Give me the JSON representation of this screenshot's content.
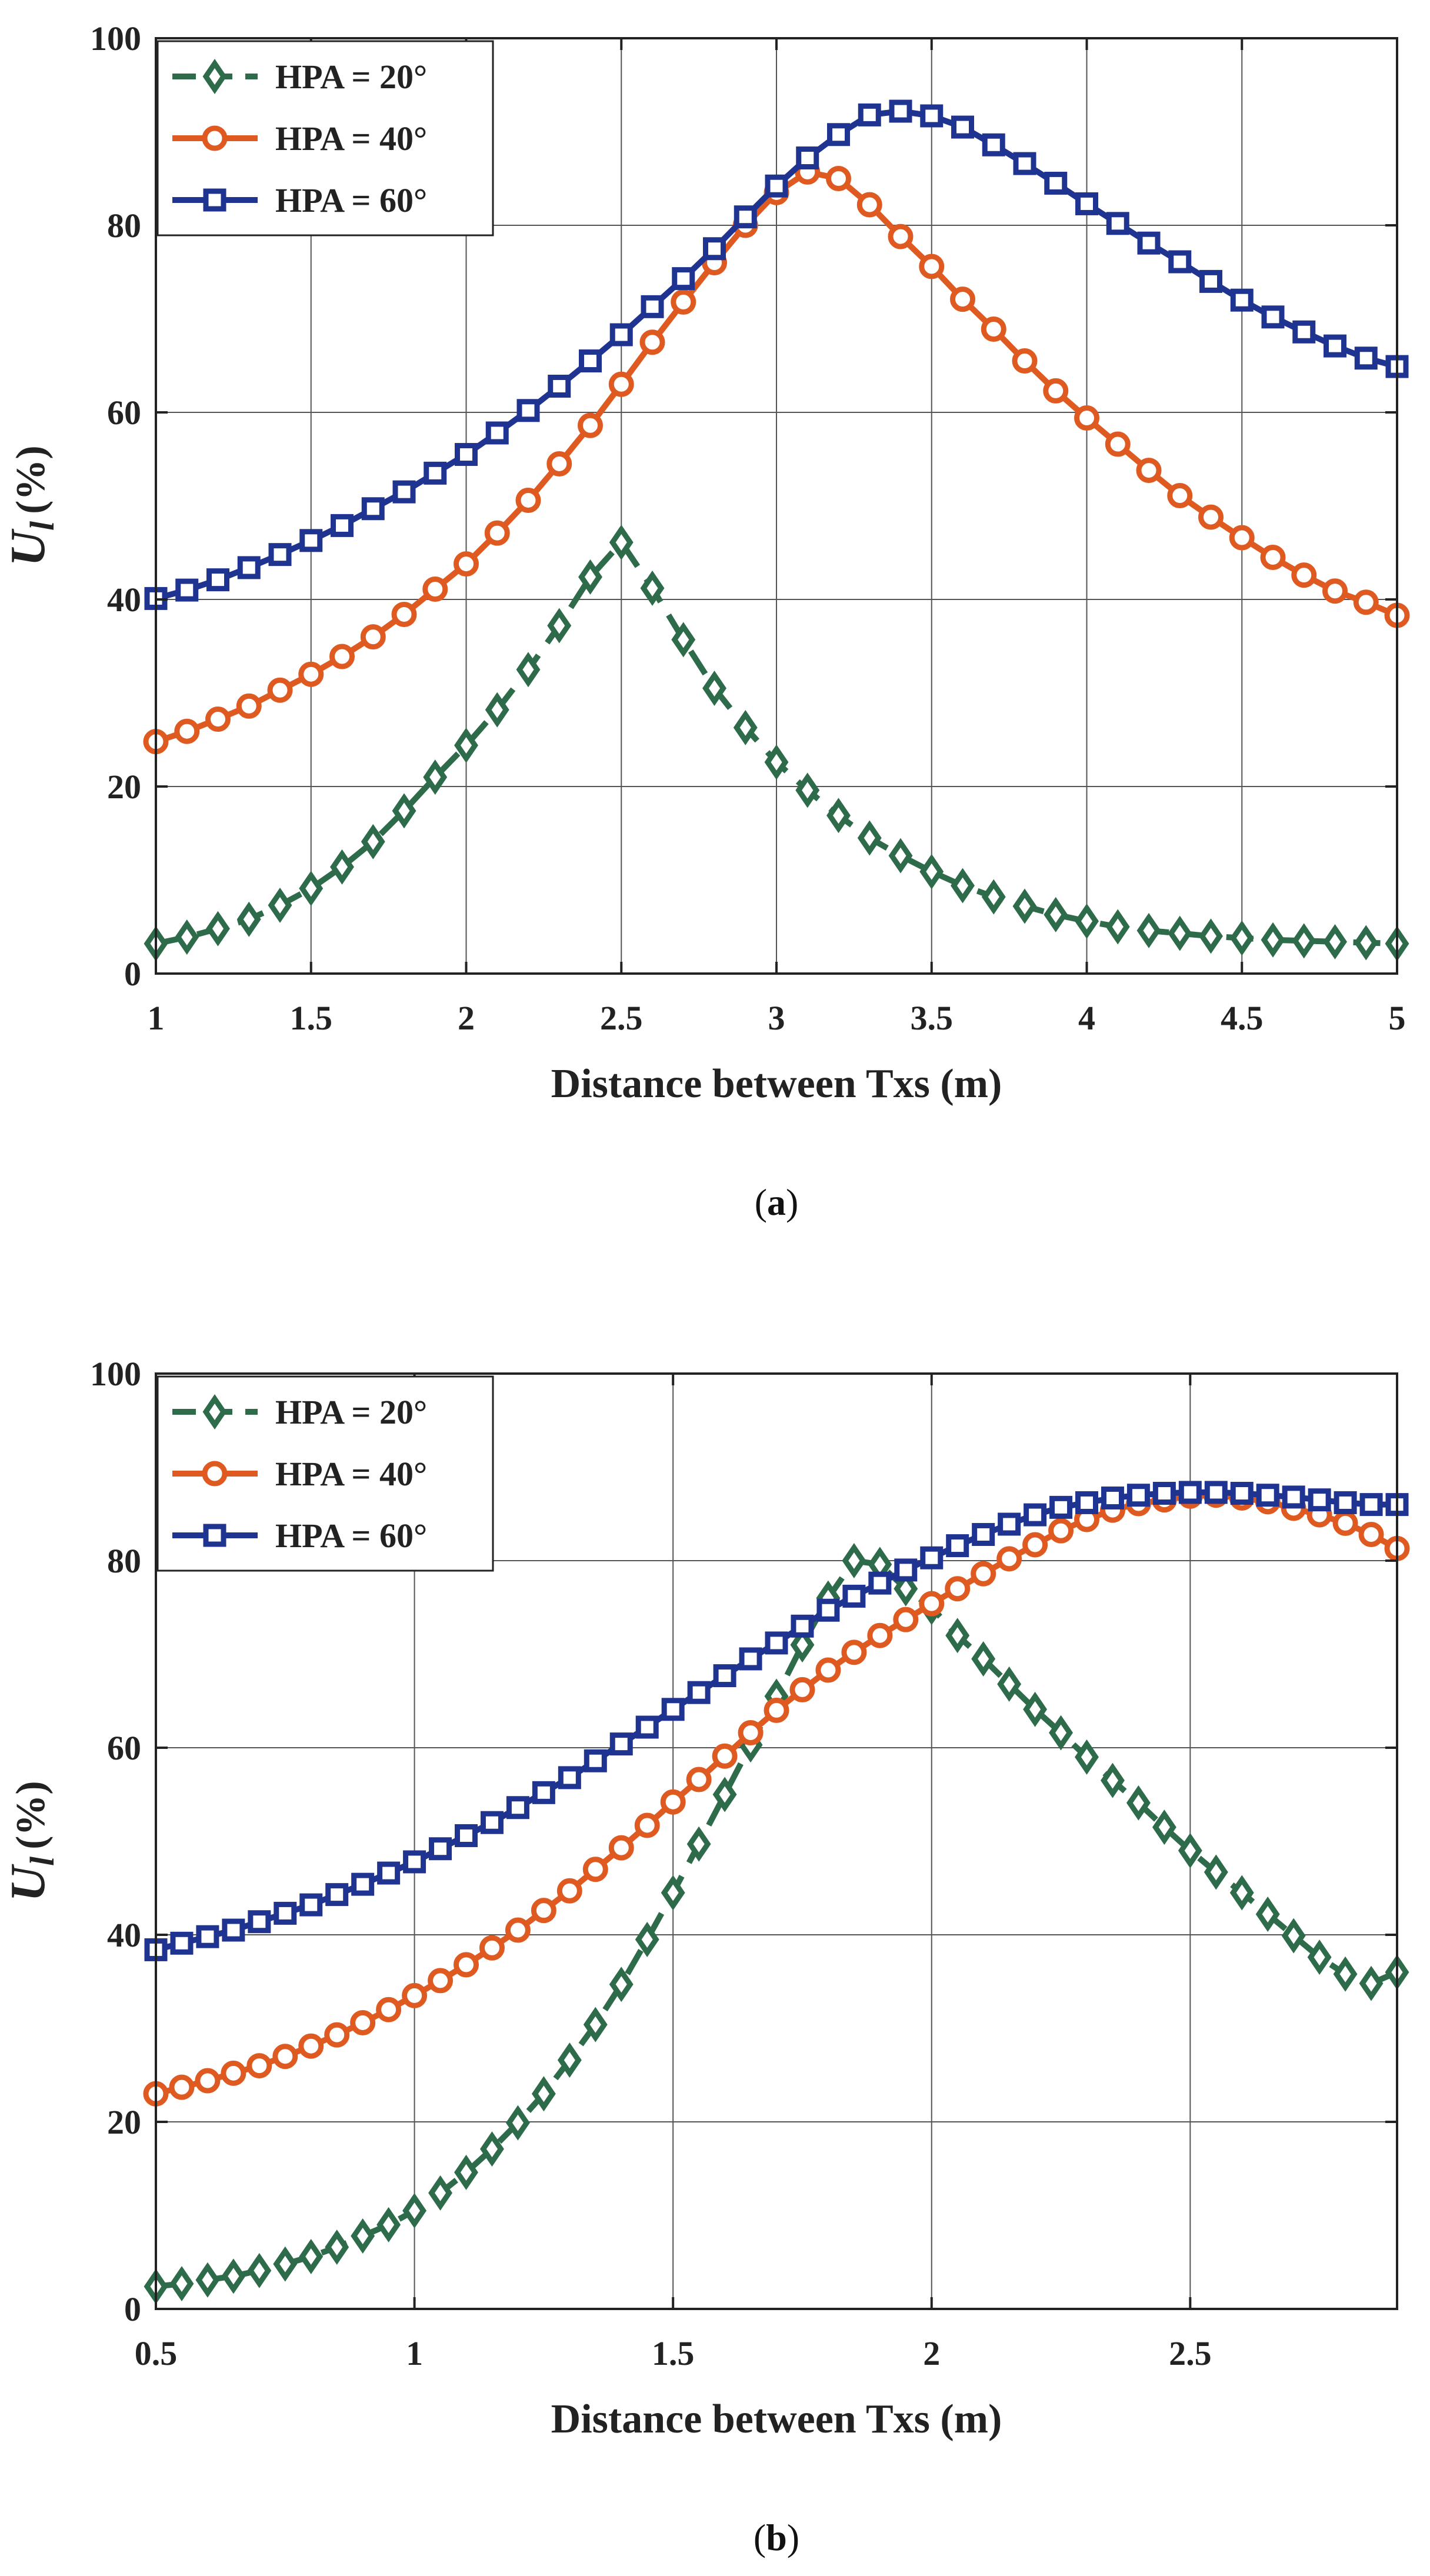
{
  "figure": {
    "panels": [
      {
        "caption_open": "(",
        "caption_letter": "a",
        "caption_close": ")"
      },
      {
        "caption_open": "(",
        "caption_letter": "b",
        "caption_close": ")"
      }
    ]
  },
  "colors": {
    "hpa20": "#2e6b4a",
    "hpa40": "#df5a20",
    "hpa60": "#1f3391",
    "grid": "#555555",
    "axis": "#222222"
  },
  "chart_data": [
    {
      "type": "line",
      "panel": "a",
      "title": "",
      "xlabel": "Distance between Txs (m)",
      "ylabel_main": "U",
      "ylabel_sub": "l",
      "ylabel_unit": "(%)",
      "xlim": [
        1,
        5
      ],
      "ylim": [
        0,
        100
      ],
      "xticks": [
        1,
        1.5,
        2,
        2.5,
        3,
        3.5,
        4,
        4.5,
        5
      ],
      "xtick_labels": [
        "1",
        "1.5",
        "2",
        "2.5",
        "3",
        "3.5",
        "4",
        "4.5",
        "5"
      ],
      "yticks": [
        0,
        20,
        40,
        60,
        80,
        100
      ],
      "ytick_labels": [
        "0",
        "20",
        "40",
        "60",
        "80",
        "100"
      ],
      "legend_position": "top-left",
      "x": [
        1.0,
        1.1,
        1.2,
        1.3,
        1.4,
        1.5,
        1.6,
        1.7,
        1.8,
        1.9,
        2.0,
        2.1,
        2.2,
        2.3,
        2.4,
        2.5,
        2.6,
        2.7,
        2.8,
        2.9,
        3.0,
        3.1,
        3.2,
        3.3,
        3.4,
        3.5,
        3.6,
        3.7,
        3.8,
        3.9,
        4.0,
        4.1,
        4.2,
        4.3,
        4.4,
        4.5,
        4.6,
        4.7,
        4.8,
        4.9,
        5.0
      ],
      "series": [
        {
          "name": "HPA = 20°",
          "marker": "diamond",
          "dash": "dashed",
          "color_key": "hpa20",
          "values": [
            3.2,
            3.9,
            4.8,
            5.8,
            7.3,
            9.1,
            11.4,
            14.1,
            17.4,
            21.0,
            24.4,
            28.2,
            32.5,
            37.2,
            42.4,
            46.1,
            41.2,
            35.7,
            30.5,
            26.3,
            22.6,
            19.6,
            16.9,
            14.5,
            12.6,
            10.9,
            9.4,
            8.2,
            7.2,
            6.3,
            5.6,
            5.0,
            4.6,
            4.3,
            4.0,
            3.8,
            3.6,
            3.5,
            3.4,
            3.3,
            3.2
          ]
        },
        {
          "name": "HPA = 40°",
          "marker": "circle",
          "dash": "solid",
          "color_key": "hpa40",
          "values": [
            24.8,
            25.9,
            27.2,
            28.6,
            30.3,
            32.0,
            33.9,
            36.0,
            38.4,
            41.1,
            43.8,
            47.1,
            50.6,
            54.5,
            58.6,
            63.0,
            67.5,
            71.8,
            76.0,
            80.0,
            83.5,
            85.7,
            85.0,
            82.2,
            78.8,
            75.6,
            72.1,
            68.9,
            65.5,
            62.3,
            59.4,
            56.6,
            53.8,
            51.1,
            48.8,
            46.6,
            44.5,
            42.6,
            40.9,
            39.7,
            38.3
          ]
        },
        {
          "name": "HPA = 60°",
          "marker": "square",
          "dash": "solid",
          "color_key": "hpa60",
          "values": [
            40.1,
            41.0,
            42.1,
            43.4,
            44.8,
            46.3,
            47.9,
            49.7,
            51.5,
            53.5,
            55.5,
            57.8,
            60.2,
            62.8,
            65.5,
            68.3,
            71.3,
            74.3,
            77.5,
            80.9,
            84.2,
            87.2,
            89.7,
            91.8,
            92.2,
            91.7,
            90.5,
            88.6,
            86.6,
            84.5,
            82.3,
            80.2,
            78.1,
            76.1,
            74.0,
            72.0,
            70.2,
            68.6,
            67.1,
            65.8,
            64.9
          ]
        }
      ]
    },
    {
      "type": "line",
      "panel": "b",
      "title": "",
      "xlabel": "Distance between Txs (m)",
      "ylabel_main": "U",
      "ylabel_sub": "l",
      "ylabel_unit": "(%)",
      "xlim": [
        0.5,
        2.9
      ],
      "ylim": [
        0,
        100
      ],
      "xticks": [
        0.5,
        1,
        1.5,
        2,
        2.5
      ],
      "xtick_labels": [
        "0.5",
        "1",
        "1.5",
        "2",
        "2.5"
      ],
      "yticks": [
        0,
        20,
        40,
        60,
        80,
        100
      ],
      "ytick_labels": [
        "0",
        "20",
        "40",
        "60",
        "80",
        "100"
      ],
      "legend_position": "top-left",
      "x": [
        0.5,
        0.55,
        0.6,
        0.65,
        0.7,
        0.75,
        0.8,
        0.85,
        0.9,
        0.95,
        1.0,
        1.05,
        1.1,
        1.15,
        1.2,
        1.25,
        1.3,
        1.35,
        1.4,
        1.45,
        1.5,
        1.55,
        1.6,
        1.65,
        1.7,
        1.75,
        1.8,
        1.85,
        1.9,
        1.95,
        2.0,
        2.05,
        2.1,
        2.15,
        2.2,
        2.25,
        2.3,
        2.35,
        2.4,
        2.45,
        2.5,
        2.55,
        2.6,
        2.65,
        2.7,
        2.75,
        2.8,
        2.85,
        2.9
      ],
      "series": [
        {
          "name": "HPA = 20°",
          "marker": "diamond",
          "dash": "dashed",
          "color_key": "hpa20",
          "values": [
            2.4,
            2.7,
            3.1,
            3.5,
            4.1,
            4.8,
            5.6,
            6.6,
            7.8,
            9.0,
            10.5,
            12.4,
            14.6,
            17.1,
            19.9,
            23.0,
            26.6,
            30.4,
            34.7,
            39.5,
            44.5,
            49.7,
            55.0,
            60.3,
            65.5,
            71.0,
            76.0,
            80.0,
            79.6,
            77.0,
            75.0,
            72.0,
            69.5,
            66.8,
            64.1,
            61.6,
            59.0,
            56.5,
            54.1,
            51.5,
            49.0,
            46.7,
            44.5,
            42.2,
            39.9,
            37.6,
            35.8,
            34.8,
            36.0
          ]
        },
        {
          "name": "HPA = 40°",
          "marker": "circle",
          "dash": "solid",
          "color_key": "hpa40",
          "values": [
            23.0,
            23.7,
            24.4,
            25.2,
            26.0,
            27.0,
            28.1,
            29.3,
            30.6,
            32.0,
            33.5,
            35.1,
            36.8,
            38.6,
            40.5,
            42.6,
            44.7,
            47.0,
            49.3,
            51.7,
            54.2,
            56.6,
            59.1,
            61.6,
            64.0,
            66.2,
            68.3,
            70.2,
            72.0,
            73.7,
            75.4,
            77.0,
            78.6,
            80.2,
            81.7,
            83.2,
            84.4,
            85.4,
            86.1,
            86.5,
            86.9,
            87.0,
            86.7,
            86.3,
            85.6,
            84.9,
            84.0,
            82.8,
            81.3
          ]
        },
        {
          "name": "HPA = 60°",
          "marker": "square",
          "dash": "solid",
          "color_key": "hpa60",
          "values": [
            38.4,
            39.1,
            39.8,
            40.5,
            41.4,
            42.3,
            43.2,
            44.3,
            45.4,
            46.6,
            47.8,
            49.2,
            50.6,
            52.0,
            53.6,
            55.2,
            56.8,
            58.6,
            60.4,
            62.2,
            64.1,
            65.9,
            67.7,
            69.5,
            71.2,
            73.0,
            74.7,
            76.2,
            77.6,
            79.0,
            80.3,
            81.6,
            82.8,
            83.9,
            84.9,
            85.7,
            86.2,
            86.7,
            87.0,
            87.2,
            87.3,
            87.3,
            87.2,
            87.0,
            86.8,
            86.5,
            86.2,
            86.0,
            86.0
          ]
        }
      ]
    }
  ]
}
